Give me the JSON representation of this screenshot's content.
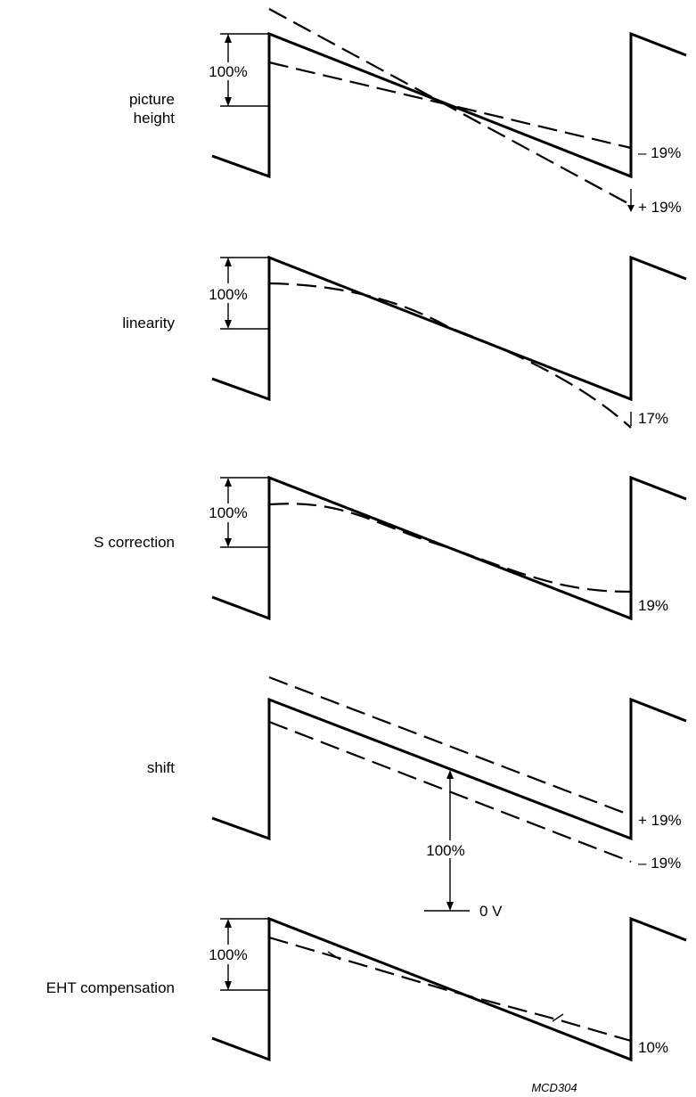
{
  "panels": [
    {
      "id": "picture-height",
      "label_lines": [
        "picture",
        "height"
      ],
      "annotations": [
        "– 19%",
        "+ 19%"
      ],
      "span_label": "100%"
    },
    {
      "id": "linearity",
      "label_lines": [
        "linearity"
      ],
      "annotations": [
        "17%"
      ],
      "span_label": "100%"
    },
    {
      "id": "s-correction",
      "label_lines": [
        "S correction"
      ],
      "annotations": [
        "19%"
      ],
      "span_label": "100%"
    },
    {
      "id": "shift",
      "label_lines": [
        "shift"
      ],
      "annotations": [
        "+ 19%",
        "– 19%"
      ],
      "span_label": "100%",
      "ground_label": "0 V"
    },
    {
      "id": "eht-compensation",
      "label_lines": [
        "EHT compensation"
      ],
      "annotations": [
        "10%"
      ],
      "span_label": "100%"
    }
  ],
  "figure_code": "MCD304",
  "colors": {
    "ink": "#000000",
    "background": "#ffffff"
  }
}
